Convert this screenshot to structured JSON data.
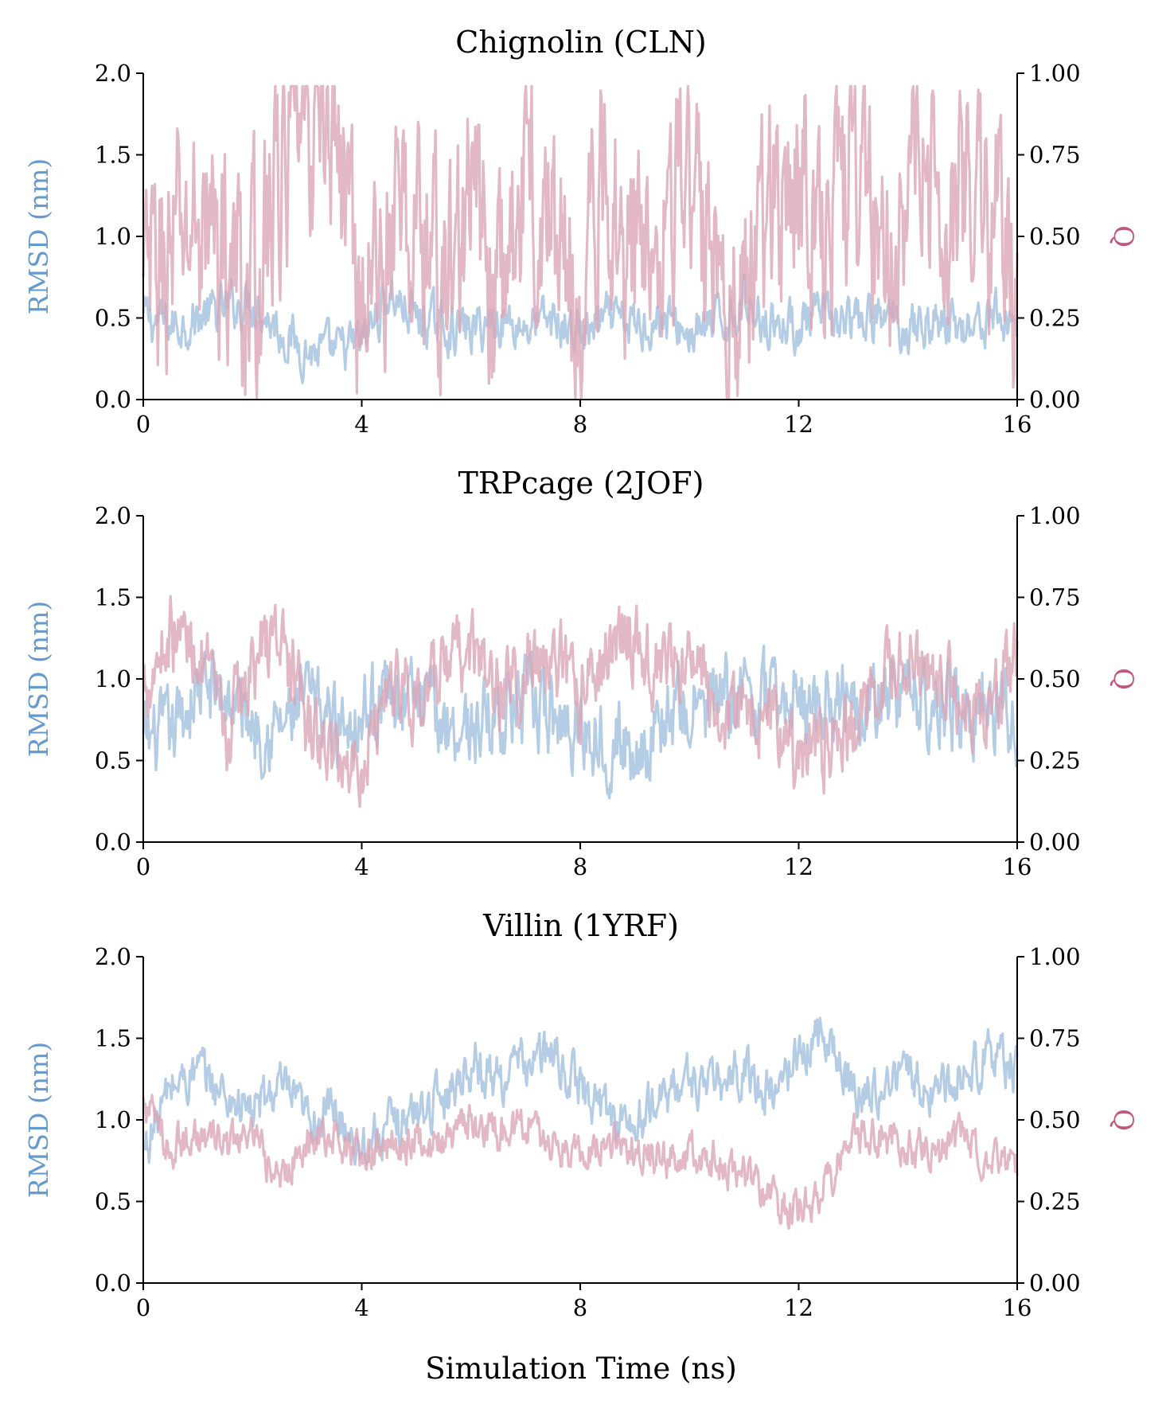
{
  "chart_data": [
    {
      "type": "line",
      "title": "Chignolin (CLN)",
      "xlabel": "",
      "ylabel_left": "RMSD (nm)",
      "ylabel_right": "Q",
      "xlim": [
        0,
        16
      ],
      "ylim_left": [
        0,
        2.0
      ],
      "ylim_right": [
        0,
        1.0
      ],
      "xticks": [
        "0",
        "4",
        "8",
        "12",
        "16"
      ],
      "yticks_left": [
        "0.0",
        "0.5",
        "1.0",
        "1.5",
        "2.0"
      ],
      "yticks_right": [
        "0.00",
        "0.25",
        "0.50",
        "0.75",
        "1.00"
      ],
      "colors": {
        "rmsd": "#a7c4e0",
        "q": "#dba6b7",
        "rmsd_label": "#6699cc",
        "q_label": "#c0577a"
      },
      "series": [
        {
          "name": "RMSD",
          "axis": "left",
          "x": [
            0,
            0.5,
            1,
            1.5,
            2,
            2.5,
            3,
            3.5,
            4,
            4.5,
            5,
            5.5,
            6,
            6.5,
            7,
            7.5,
            8,
            8.5,
            9,
            9.5,
            10,
            10.5,
            11,
            11.5,
            12,
            12.5,
            13,
            13.5,
            14,
            14.5,
            15,
            15.5,
            16
          ],
          "values": [
            0.5,
            0.45,
            0.5,
            0.55,
            0.62,
            0.42,
            0.3,
            0.28,
            0.35,
            0.65,
            0.5,
            0.45,
            0.42,
            0.5,
            0.45,
            0.48,
            0.4,
            0.48,
            0.45,
            0.5,
            0.4,
            0.45,
            0.6,
            0.48,
            0.45,
            0.5,
            0.45,
            0.5,
            0.45,
            0.48,
            0.45,
            0.5,
            0.48
          ],
          "amplitude": 0.12
        },
        {
          "name": "Q",
          "axis": "right",
          "x": [
            0,
            0.5,
            1,
            1.5,
            2,
            2.5,
            3,
            3.5,
            4,
            4.5,
            5,
            5.5,
            6,
            6.5,
            7,
            7.5,
            8,
            8.5,
            9,
            9.5,
            10,
            10.5,
            11,
            11.5,
            12,
            12.5,
            13,
            13.5,
            14,
            14.5,
            15,
            15.5,
            16
          ],
          "values": [
            0.3,
            0.45,
            0.55,
            0.45,
            0.3,
            0.7,
            0.82,
            0.85,
            0.3,
            0.5,
            0.55,
            0.35,
            0.6,
            0.3,
            0.7,
            0.5,
            0.3,
            0.7,
            0.45,
            0.65,
            0.6,
            0.45,
            0.25,
            0.6,
            0.7,
            0.55,
            0.7,
            0.5,
            0.7,
            0.6,
            0.65,
            0.55,
            0.35
          ],
          "amplitude": 0.28
        }
      ]
    },
    {
      "type": "line",
      "title": "TRPcage (2JOF)",
      "xlabel": "",
      "ylabel_left": "RMSD (nm)",
      "ylabel_right": "Q",
      "xlim": [
        0,
        16
      ],
      "ylim_left": [
        0,
        2.0
      ],
      "ylim_right": [
        0,
        1.0
      ],
      "xticks": [
        "0",
        "4",
        "8",
        "12",
        "16"
      ],
      "yticks_left": [
        "0.0",
        "0.5",
        "1.0",
        "1.5",
        "2.0"
      ],
      "yticks_right": [
        "0.00",
        "0.25",
        "0.50",
        "0.75",
        "1.00"
      ],
      "colors": {
        "rmsd": "#a7c4e0",
        "q": "#dba6b7",
        "rmsd_label": "#6699cc",
        "q_label": "#c0577a"
      },
      "series": [
        {
          "name": "RMSD",
          "axis": "left",
          "x": [
            0,
            0.5,
            1,
            1.5,
            2,
            2.5,
            3,
            3.5,
            4,
            4.5,
            5,
            5.5,
            6,
            6.5,
            7,
            7.5,
            8,
            8.5,
            9,
            9.5,
            10,
            10.5,
            11,
            11.5,
            12,
            12.5,
            13,
            13.5,
            14,
            14.5,
            15,
            15.5,
            16
          ],
          "values": [
            0.6,
            0.65,
            0.95,
            0.9,
            0.75,
            0.7,
            0.85,
            0.75,
            0.8,
            0.95,
            0.85,
            0.75,
            0.7,
            0.8,
            0.85,
            0.75,
            0.7,
            0.65,
            0.55,
            0.75,
            0.8,
            0.85,
            0.9,
            0.85,
            0.85,
            0.9,
            0.95,
            0.85,
            0.9,
            0.85,
            0.8,
            0.85,
            0.75
          ],
          "amplitude": 0.2
        },
        {
          "name": "Q",
          "axis": "right",
          "x": [
            0,
            0.5,
            1,
            1.5,
            2,
            2.5,
            3,
            3.5,
            4,
            4.5,
            5,
            5.5,
            6,
            6.5,
            7,
            7.5,
            8,
            8.5,
            9,
            9.5,
            10,
            10.5,
            11,
            11.5,
            12,
            12.5,
            13,
            13.5,
            14,
            14.5,
            15,
            15.5,
            16
          ],
          "values": [
            0.5,
            0.65,
            0.6,
            0.3,
            0.55,
            0.65,
            0.35,
            0.25,
            0.25,
            0.5,
            0.45,
            0.5,
            0.6,
            0.45,
            0.55,
            0.55,
            0.45,
            0.6,
            0.65,
            0.5,
            0.55,
            0.4,
            0.45,
            0.38,
            0.25,
            0.3,
            0.35,
            0.48,
            0.55,
            0.5,
            0.45,
            0.4,
            0.55
          ],
          "amplitude": 0.1
        }
      ]
    },
    {
      "type": "line",
      "title": "Villin (1YRF)",
      "xlabel": "Simulation Time (ns)",
      "ylabel_left": "RMSD (nm)",
      "ylabel_right": "Q",
      "xlim": [
        0,
        16
      ],
      "ylim_left": [
        0,
        2.0
      ],
      "ylim_right": [
        0,
        1.0
      ],
      "xticks": [
        "0",
        "4",
        "8",
        "12",
        "16"
      ],
      "yticks_left": [
        "0.0",
        "0.5",
        "1.0",
        "1.5",
        "2.0"
      ],
      "yticks_right": [
        "0.00",
        "0.25",
        "0.50",
        "0.75",
        "1.00"
      ],
      "colors": {
        "rmsd": "#a7c4e0",
        "q": "#dba6b7",
        "rmsd_label": "#6699cc",
        "q_label": "#c0577a"
      },
      "series": [
        {
          "name": "RMSD",
          "axis": "left",
          "x": [
            0,
            0.5,
            1,
            1.5,
            2,
            2.5,
            3,
            3.5,
            4,
            4.5,
            5,
            5.5,
            6,
            6.5,
            7,
            7.5,
            8,
            8.5,
            9,
            9.5,
            10,
            10.5,
            11,
            11.5,
            12,
            12.5,
            13,
            13.5,
            14,
            14.5,
            15,
            15.5,
            16
          ],
          "values": [
            0.8,
            1.2,
            1.3,
            1.15,
            1.05,
            1.2,
            1.0,
            1.05,
            0.85,
            0.95,
            1.05,
            1.15,
            1.35,
            1.25,
            1.35,
            1.4,
            1.2,
            1.05,
            0.95,
            1.15,
            1.25,
            1.2,
            1.3,
            1.15,
            1.4,
            1.55,
            1.15,
            1.2,
            1.3,
            1.15,
            1.3,
            1.4,
            1.3
          ],
          "amplitude": 0.12
        },
        {
          "name": "Q",
          "axis": "right",
          "x": [
            0,
            0.5,
            1,
            1.5,
            2,
            2.5,
            3,
            3.5,
            4,
            4.5,
            5,
            5.5,
            6,
            6.5,
            7,
            7.5,
            8,
            8.5,
            9,
            9.5,
            10,
            10.5,
            11,
            11.5,
            12,
            12.5,
            13,
            13.5,
            14,
            14.5,
            15,
            15.5,
            16
          ],
          "values": [
            0.55,
            0.42,
            0.45,
            0.42,
            0.45,
            0.3,
            0.45,
            0.45,
            0.38,
            0.42,
            0.45,
            0.42,
            0.5,
            0.45,
            0.5,
            0.42,
            0.4,
            0.45,
            0.42,
            0.38,
            0.4,
            0.38,
            0.32,
            0.25,
            0.22,
            0.3,
            0.45,
            0.45,
            0.42,
            0.38,
            0.45,
            0.38,
            0.35
          ],
          "amplitude": 0.05
        }
      ]
    }
  ]
}
